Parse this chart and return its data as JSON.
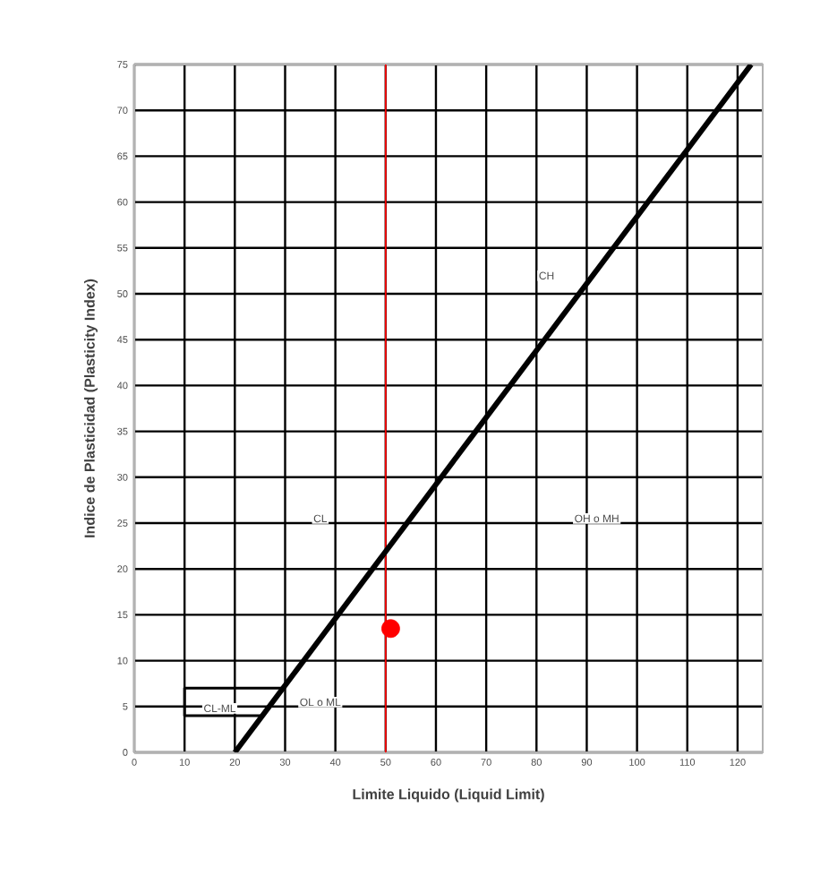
{
  "chart_data": {
    "type": "line",
    "xlabel": "Limite Liquido (Liquid Limit)",
    "ylabel": "Indice de Plasticidad (Plasticity Index)",
    "xlim": [
      0,
      125
    ],
    "ylim": [
      0,
      75
    ],
    "xticks": [
      0,
      10,
      20,
      30,
      40,
      50,
      60,
      70,
      80,
      90,
      100,
      110,
      120
    ],
    "yticks": [
      0,
      5,
      10,
      15,
      20,
      25,
      30,
      35,
      40,
      45,
      50,
      55,
      60,
      65,
      70,
      75
    ],
    "grid": true,
    "series": [
      {
        "color": "#000000",
        "x": [
          20,
          122.7
        ],
        "values": [
          0,
          75
        ]
      },
      {
        "color": "#000000",
        "x": [
          25.5,
          10,
          10,
          29.6
        ],
        "values": [
          4,
          4,
          7,
          7
        ]
      },
      {
        "type": "scatter",
        "color": "#ff0000",
        "x": [
          51
        ],
        "values": [
          13.5
        ]
      }
    ],
    "ref_lines": [
      {
        "axis": "x",
        "value": 50,
        "color": "#ff0000"
      }
    ],
    "annotations": [
      "CH",
      "CL",
      "OH o MH",
      "OL o ML",
      "CL-ML"
    ]
  }
}
